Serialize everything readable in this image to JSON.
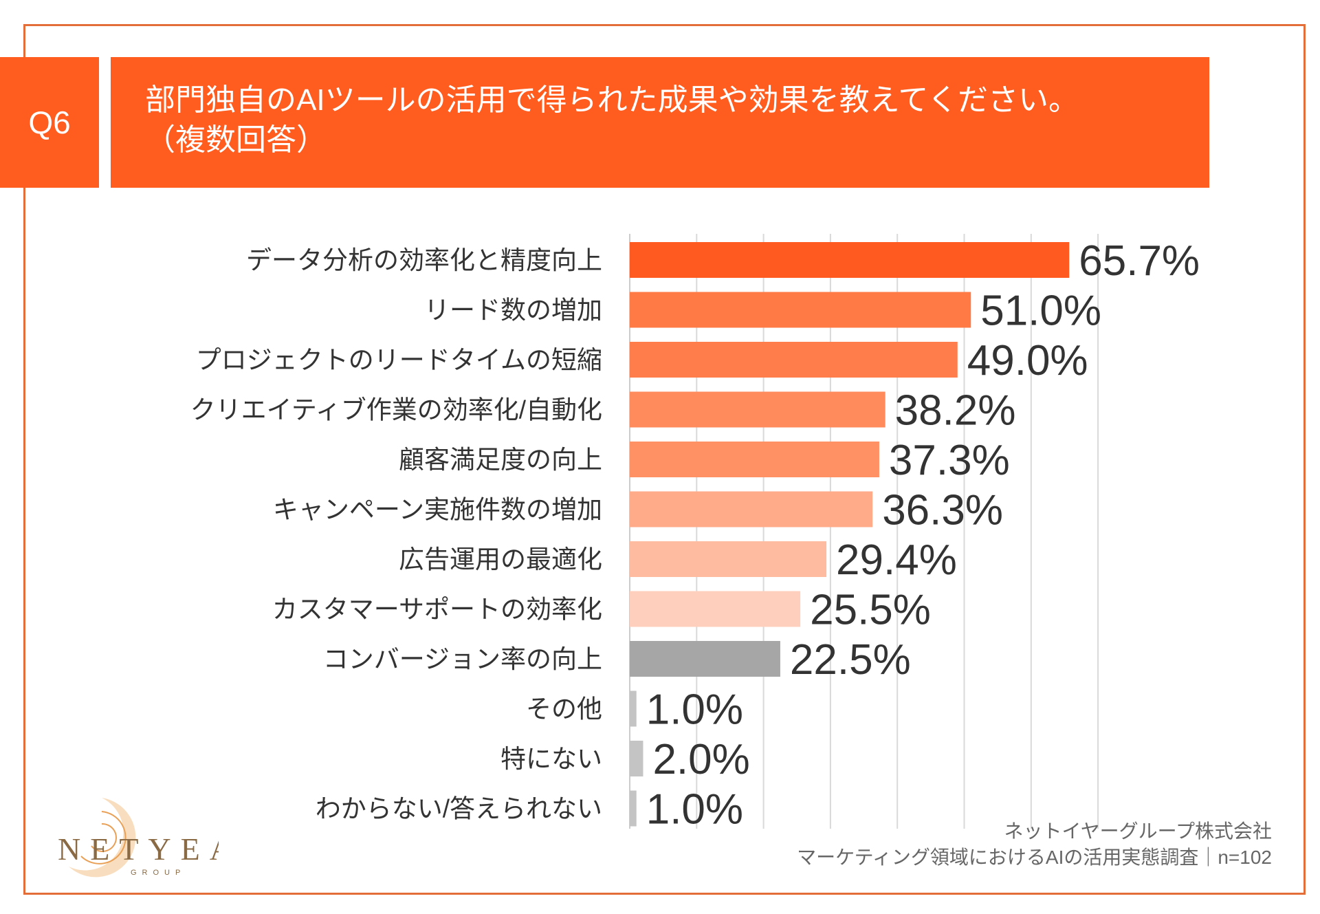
{
  "question_badge": "Q6",
  "title": {
    "line1": "部門独自のAIツールの活用で得られた成果や効果を教えてください。",
    "line2": "（複数回答）"
  },
  "footer": {
    "company": "ネットイヤーグループ株式会社",
    "survey": "マーケティング領域におけるAIの活用実態調査｜n=102"
  },
  "logo": {
    "text": "NETYEAR",
    "sub": "GROUP"
  },
  "chart_data": {
    "type": "bar",
    "orientation": "horizontal",
    "title": "部門独自のAIツールの活用で得られた成果や効果を教えてください。（複数回答）",
    "xlabel": "",
    "ylabel": "",
    "xlim": [
      0,
      70
    ],
    "grid": true,
    "value_suffix": "%",
    "categories": [
      "データ分析の効率化と精度向上",
      "リード数の増加",
      "プロジェクトのリードタイムの短縮",
      "クリエイティブ作業の効率化/自動化",
      "顧客満足度の向上",
      "キャンペーン実施件数の増加",
      "広告運用の最適化",
      "カスタマーサポートの効率化",
      "コンバージョン率の向上",
      "その他",
      "特にない",
      "わからない/答えられない"
    ],
    "values": [
      65.7,
      51.0,
      49.0,
      38.2,
      37.3,
      36.3,
      29.4,
      25.5,
      22.5,
      1.0,
      2.0,
      1.0
    ],
    "value_labels": [
      "65.7%",
      "51.0%",
      "49.0%",
      "38.2%",
      "37.3%",
      "36.3%",
      "29.4%",
      "25.5%",
      "22.5%",
      "1.0%",
      "2.0%",
      "1.0%"
    ],
    "bar_colors": [
      "#ff5a1f",
      "#ff7a45",
      "#ff7d4a",
      "#ff8a5c",
      "#ff9164",
      "#ffaa88",
      "#ffbb9f",
      "#ffcfbe",
      "#a6a6a6",
      "#c4c4c4",
      "#c4c4c4",
      "#c4c4c4"
    ]
  }
}
